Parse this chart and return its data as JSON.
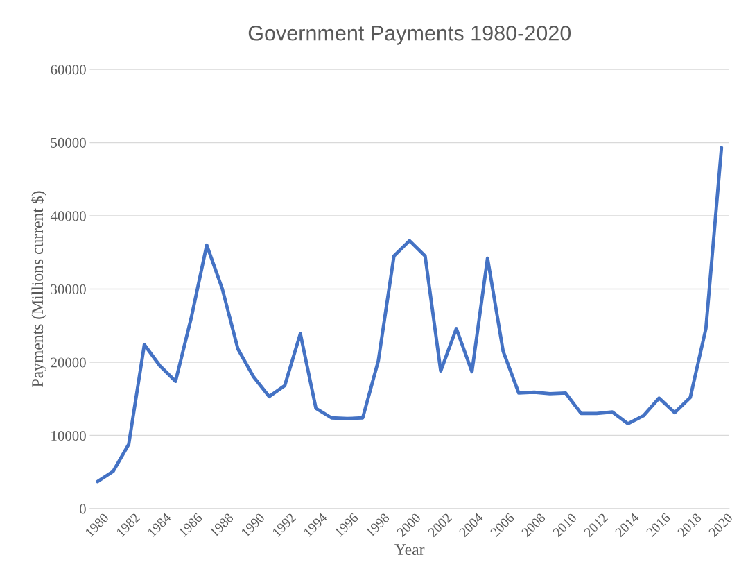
{
  "chart_data": {
    "type": "line",
    "title": "Government Payments 1980-2020",
    "xlabel": "Year",
    "ylabel": "Payments (Millions current $)",
    "categories": [
      "1980",
      null,
      "1982",
      null,
      "1984",
      null,
      "1986",
      null,
      "1988",
      null,
      "1990",
      null,
      "1992",
      null,
      "1994",
      null,
      "1996",
      null,
      "1998",
      null,
      "2000",
      null,
      "2002",
      null,
      "2004",
      null,
      "2006",
      null,
      "2008",
      null,
      "2010",
      null,
      "2012",
      null,
      "2014",
      null,
      "2016",
      null,
      "2018",
      null,
      "2020"
    ],
    "series": [
      {
        "color": "#4472c4",
        "values": [
          3700,
          5100,
          8800,
          22400,
          19500,
          17400,
          26000,
          36000,
          30000,
          21800,
          18000,
          15300,
          16800,
          23900,
          13700,
          12400,
          12300,
          12400,
          20200,
          34500,
          36600,
          34500,
          18800,
          24600,
          18700,
          34200,
          21500,
          15800,
          15900,
          15700,
          15800,
          13000,
          13000,
          13200,
          11600,
          12700,
          15100,
          13100,
          15200,
          24600,
          49300
        ]
      }
    ],
    "ylim": [
      0,
      60000
    ],
    "yticks": [
      0,
      10000,
      20000,
      30000,
      40000,
      50000,
      60000
    ],
    "grid": "y",
    "legend": false,
    "marker": "none",
    "line_style": "solid"
  }
}
